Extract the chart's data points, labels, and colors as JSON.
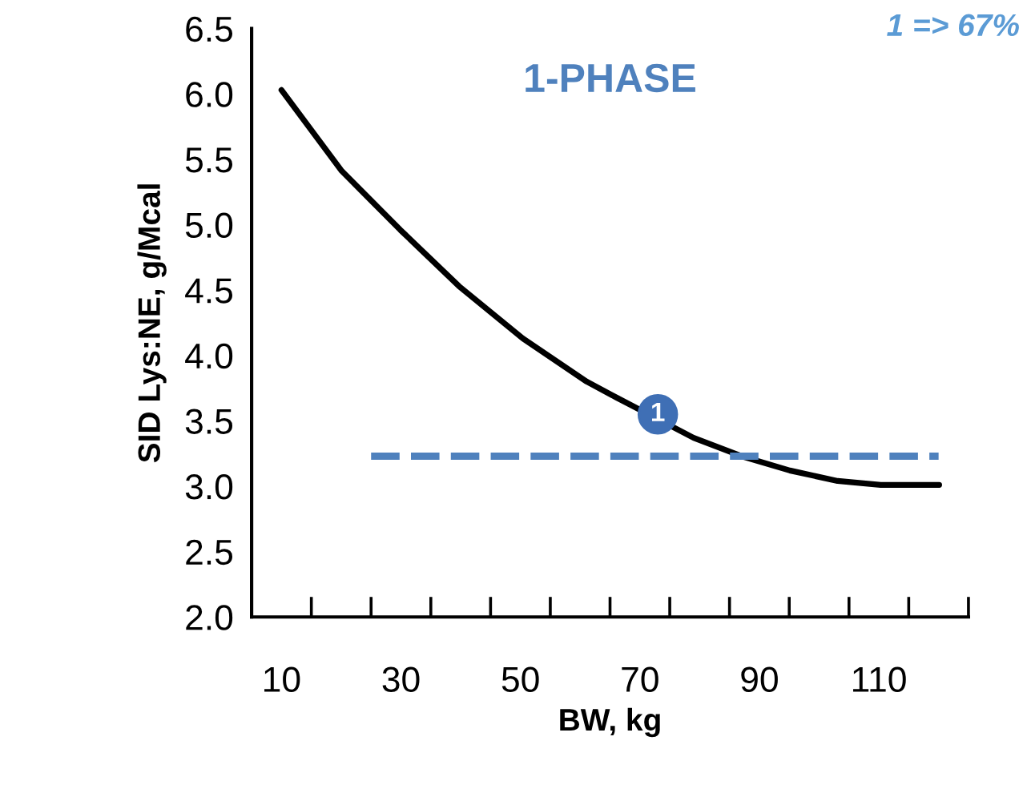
{
  "chart_data": {
    "type": "line",
    "title": "1-PHASE",
    "xlabel": "BW, kg",
    "ylabel": "SID Lys:NE, g/Mcal",
    "x": [
      10,
      20.1,
      29.9,
      39.7,
      50.4,
      61.1,
      66,
      79,
      87,
      95.1,
      103.1,
      110.3,
      120.1
    ],
    "series": [
      {
        "color": "#000000",
        "values": [
          6.03,
          5.41,
          4.96,
          4.53,
          4.13,
          3.8,
          3.68,
          3.37,
          3.23,
          3.12,
          3.04,
          3.01,
          3.01
        ]
      },
      {
        "color": "#4f81bd",
        "line_style": "dashed",
        "x": [
          25,
          120
        ],
        "values": [
          3.23,
          3.23
        ]
      }
    ],
    "annotations": [
      {
        "text": "1",
        "x": 73,
        "y": 3.55
      },
      "1 => 67%"
    ],
    "xlim": [
      5,
      125
    ],
    "xticks": [
      {
        "value": 5,
        "label": null
      },
      {
        "value": 10,
        "label": "10"
      },
      {
        "value": 15,
        "label": null
      },
      {
        "value": 25,
        "label": null
      },
      {
        "value": 30,
        "label": "30"
      },
      {
        "value": 35,
        "label": null
      },
      {
        "value": 45,
        "label": null
      },
      {
        "value": 50,
        "label": "50"
      },
      {
        "value": 55,
        "label": null
      },
      {
        "value": 65,
        "label": null
      },
      {
        "value": 70,
        "label": "70"
      },
      {
        "value": 75,
        "label": null
      },
      {
        "value": 85,
        "label": null
      },
      {
        "value": 90,
        "label": "90"
      },
      {
        "value": 95,
        "label": null
      },
      {
        "value": 105,
        "label": null
      },
      {
        "value": 110,
        "label": "110"
      },
      {
        "value": 115,
        "label": null
      },
      {
        "value": 125,
        "label": null
      }
    ],
    "ylim": [
      2.0,
      6.5
    ],
    "yticks": [
      {
        "value": 2.0,
        "label": "2.0"
      },
      {
        "value": 2.5,
        "label": "2.5"
      },
      {
        "value": 3.0,
        "label": "3.0"
      },
      {
        "value": 3.5,
        "label": "3.5"
      },
      {
        "value": 4.0,
        "label": "4.0"
      },
      {
        "value": 4.5,
        "label": "4.5"
      },
      {
        "value": 5.0,
        "label": "5.0"
      },
      {
        "value": 5.5,
        "label": "5.5"
      },
      {
        "value": 6.0,
        "label": "6.0"
      },
      {
        "value": 6.5,
        "label": "6.5"
      }
    ],
    "grid": false,
    "legend": false,
    "marker": "none"
  }
}
